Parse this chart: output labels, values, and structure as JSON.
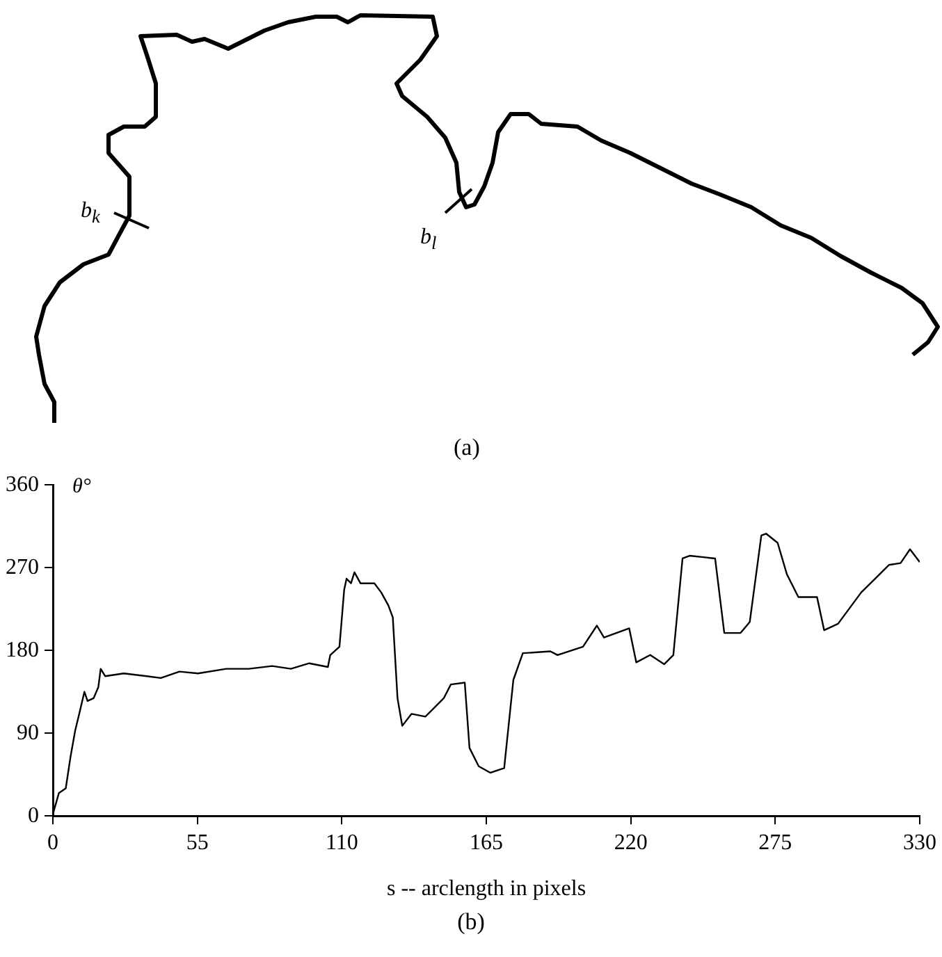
{
  "chart_data": [
    {
      "type": "other",
      "annotations": [
        "b$_{k}$",
        "b$_{l}$",
        "(a)"
      ]
    },
    {
      "type": "line",
      "xlabel": "s -- arclength in pixels",
      "ylabel": "θ°",
      "annotations": [
        "(b)"
      ],
      "color": "#000000",
      "marker": "none",
      "line_style": "solid",
      "grid": false,
      "legend": false,
      "x": [
        0,
        2.3,
        4.9,
        6.7,
        8.5,
        10.2,
        12.0,
        13.2,
        15.5,
        17.3,
        18.2,
        19.9,
        27,
        35.8,
        41.1,
        48.2,
        55.3,
        66,
        74.6,
        83.5,
        90.6,
        97.6,
        104.7,
        105.6,
        109.1,
        110.9,
        111.8,
        113.5,
        114.8,
        117.1,
        122.4,
        125.0,
        127.7,
        129.4,
        131.2,
        133.0,
        136.5,
        141.8,
        148.8,
        151.5,
        156.8,
        158.6,
        162.1,
        166.5,
        171.8,
        175.3,
        178.9,
        189.4,
        192.1,
        201.8,
        207.1,
        209.8,
        219.4,
        222.1,
        227.4,
        232.7,
        236.2,
        239.7,
        242.4,
        252.1,
        255.6,
        261.8,
        265.3,
        269.7,
        271.5,
        275.9,
        279.4,
        283.8,
        287.4,
        290.9,
        293.6,
        298.9,
        307.7,
        313.0,
        318.3,
        322.7,
        326.3,
        330
      ],
      "values": [
        2,
        25,
        30,
        64,
        93,
        113,
        135,
        125,
        128,
        140,
        160,
        152,
        155,
        152,
        150,
        157,
        155,
        160,
        160,
        163,
        160,
        166,
        162,
        175,
        184,
        246,
        258,
        253,
        265,
        253,
        253,
        243,
        229,
        216,
        128,
        98,
        111,
        108,
        128,
        143,
        145,
        74,
        54,
        47,
        52,
        148,
        177,
        179,
        175,
        184,
        207,
        194,
        204,
        167,
        175,
        165,
        175,
        280,
        283,
        280,
        199,
        199,
        211,
        305,
        307,
        297,
        263,
        238,
        238,
        238,
        202,
        209,
        243,
        258,
        273,
        275,
        290,
        276
      ],
      "xlim": [
        0,
        330
      ],
      "xticks": [
        0,
        55,
        110,
        165,
        220,
        275,
        330
      ],
      "ylim": [
        0,
        360
      ],
      "yticks": [
        0,
        90,
        180,
        270,
        360
      ]
    }
  ]
}
